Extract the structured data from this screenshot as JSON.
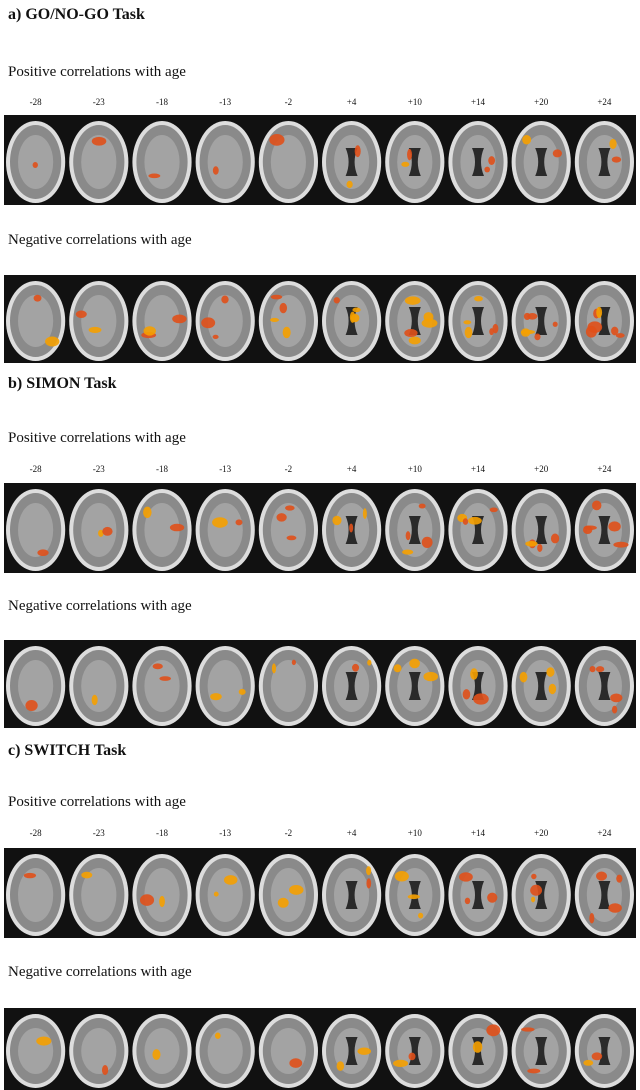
{
  "panels": [
    {
      "title": "a) GO/NO-GO Task",
      "positive": {
        "label": "Positive correlations with age",
        "slices": [
          "-28",
          "-23",
          "-18",
          "-13",
          "-2",
          "+4",
          "+10",
          "+14",
          "+20",
          "+24"
        ]
      },
      "negative": {
        "label": "Negative correlations with age"
      }
    },
    {
      "title": "b) SIMON Task",
      "positive": {
        "label": "Positive correlations with age",
        "slices": [
          "-28",
          "-23",
          "-18",
          "-13",
          "-2",
          "+4",
          "+10",
          "+14",
          "+20",
          "+24"
        ]
      },
      "negative": {
        "label": "Negative correlations with age"
      }
    },
    {
      "title": "c) SWITCH Task",
      "positive": {
        "label": "Positive correlations with age",
        "slices": [
          "-28",
          "-23",
          "-18",
          "-13",
          "-2",
          "+4",
          "+10",
          "+14",
          "+20",
          "+24"
        ]
      },
      "negative": {
        "label": "Negative correlations with age"
      }
    }
  ]
}
